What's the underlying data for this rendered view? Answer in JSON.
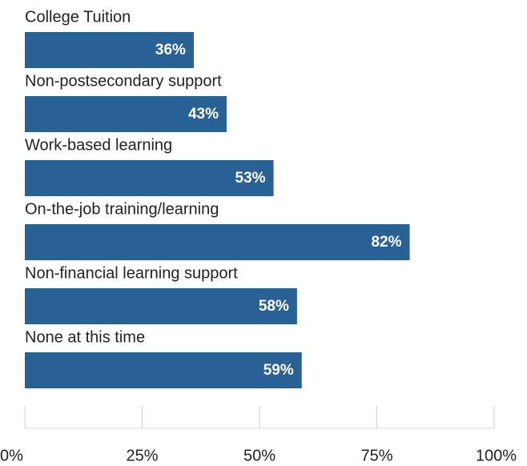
{
  "chart_data": {
    "type": "bar",
    "orientation": "horizontal",
    "categories": [
      "College Tuition",
      "Non-postsecondary support",
      "Work-based learning",
      "On-the-job training/learning",
      "Non-financial learning support",
      "None at this time"
    ],
    "values": [
      36,
      43,
      53,
      82,
      58,
      59
    ],
    "value_labels": [
      "36%",
      "43%",
      "53%",
      "82%",
      "58%",
      "59%"
    ],
    "color": "#2a6195",
    "xlim": [
      0,
      100
    ],
    "xticks": [
      {
        "value": 0,
        "label": "0%"
      },
      {
        "value": 25,
        "label": "25%"
      },
      {
        "value": 50,
        "label": "50%"
      },
      {
        "value": 75,
        "label": "75%"
      },
      {
        "value": 100,
        "label": "100%"
      }
    ]
  }
}
